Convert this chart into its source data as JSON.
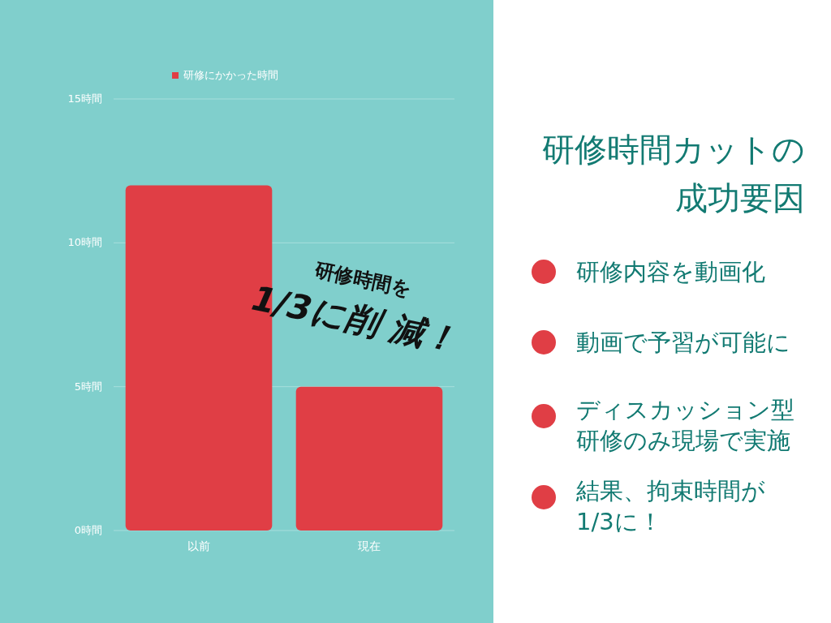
{
  "chart_data": [
    {
      "type": "bar",
      "categories": [
        "以前",
        "現在"
      ],
      "series": [
        {
          "name": "研修にかかった時間",
          "color": "#e03e45",
          "values": [
            12,
            5
          ]
        }
      ],
      "ylim": [
        0,
        15
      ],
      "yticks": [
        {
          "value": 0,
          "label": "0時間"
        },
        {
          "value": 5,
          "label": "5時間"
        },
        {
          "value": 10,
          "label": "10時間"
        },
        {
          "value": 15,
          "label": "15時間"
        }
      ],
      "grid": "y",
      "legend": "top",
      "annotations": [
        "研修時間を1/3に削減！"
      ]
    },
    {
      "type": "other",
      "title": "研修時間カットの成功要因",
      "annotations": [
        "研修内容を動画化",
        "動画で予習が可能に",
        "ディスカッション型研修のみ現場で実施",
        "結果、拘束時間が1/3に！"
      ]
    }
  ]
}
